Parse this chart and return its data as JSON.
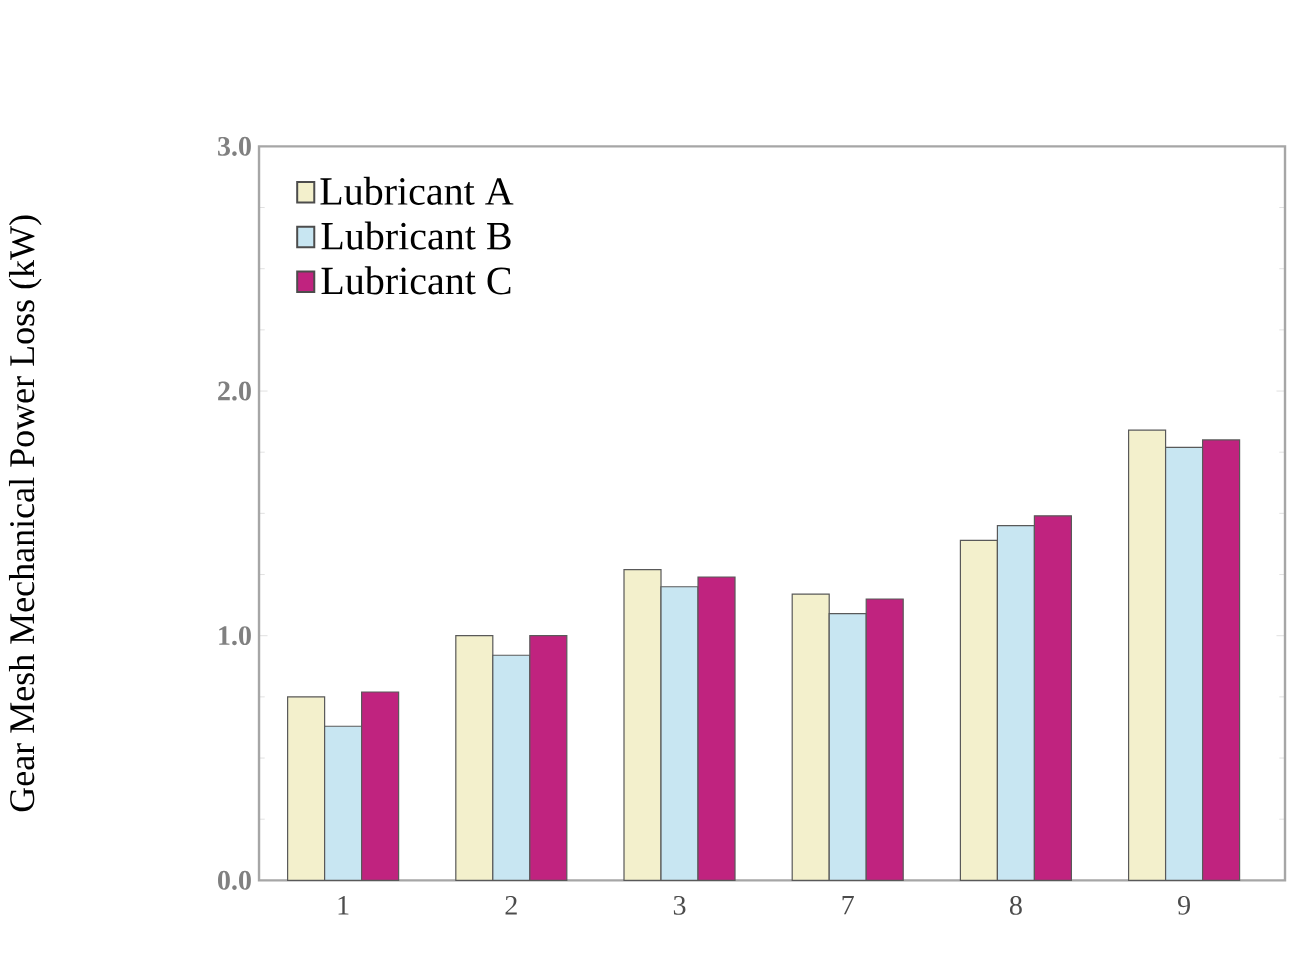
{
  "chart_data": {
    "type": "bar",
    "ylabel": "Gear Mesh Mechanical Power Loss (kW)",
    "categories": [
      "1",
      "2",
      "3",
      "7",
      "8",
      "9"
    ],
    "series": [
      {
        "name": "Lubricant A",
        "color": "#f3f0cc",
        "values": [
          0.75,
          1.0,
          1.27,
          1.17,
          1.39,
          1.84
        ]
      },
      {
        "name": "Lubricant B",
        "color": "#c8e6f2",
        "values": [
          0.63,
          0.92,
          1.2,
          1.09,
          1.45,
          1.77
        ]
      },
      {
        "name": "Lubricant C",
        "color": "#c0237f",
        "values": [
          0.77,
          1.0,
          1.24,
          1.15,
          1.49,
          1.8
        ]
      }
    ],
    "ylim": [
      0,
      3
    ],
    "yticks": [
      {
        "value": 0,
        "label": "0.0"
      },
      {
        "value": 1,
        "label": "1.0"
      },
      {
        "value": 2,
        "label": "2.0"
      },
      {
        "value": 3,
        "label": "3.0"
      }
    ],
    "legend": "top left",
    "grid": false
  }
}
